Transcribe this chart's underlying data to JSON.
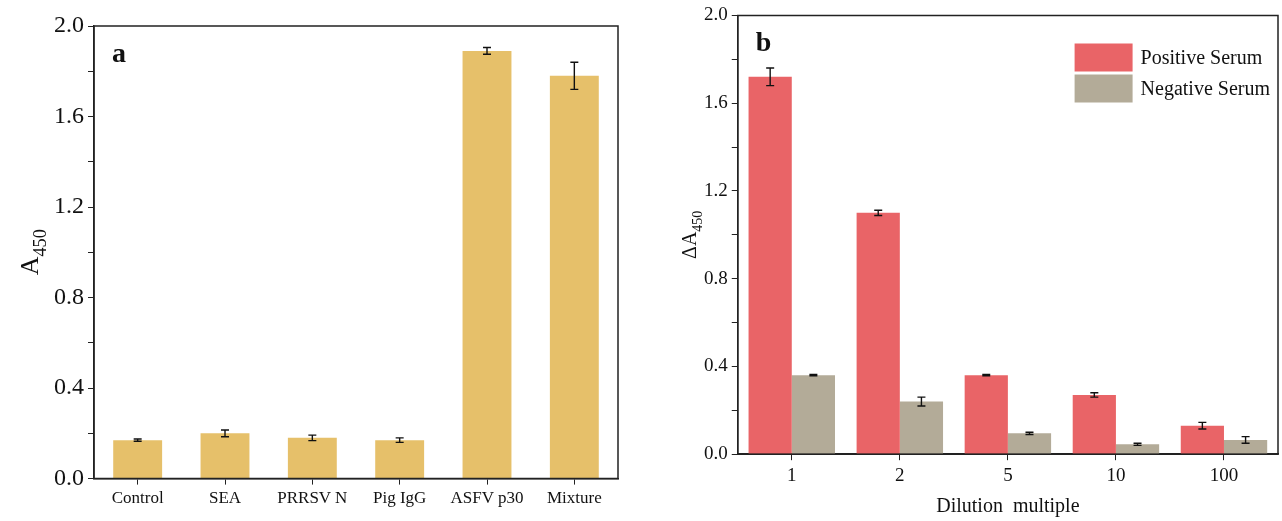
{
  "chart_data": [
    {
      "type": "bar",
      "ylabel": "A$_{450}$",
      "annotations": [
        "a"
      ],
      "categories": [
        "Control",
        "SEA",
        "PRRSV N",
        "Pig IgG",
        "ASFV p30",
        "Mixture"
      ],
      "values": [
        0.17,
        0.2,
        0.18,
        0.17,
        1.89,
        1.78
      ],
      "errors": [
        0.005,
        0.015,
        0.012,
        0.01,
        0.015,
        0.06
      ],
      "color": "#e6c06a",
      "ylim": [
        0,
        2
      ],
      "yticks": [
        {
          "value": 0,
          "label": "0.0"
        },
        {
          "value": 0.2,
          "label": null
        },
        {
          "value": 0.4,
          "label": "0.4"
        },
        {
          "value": 0.6,
          "label": null
        },
        {
          "value": 0.8,
          "label": "0.8"
        },
        {
          "value": 1,
          "label": null
        },
        {
          "value": 1.2,
          "label": "1.2"
        },
        {
          "value": 1.4,
          "label": null
        },
        {
          "value": 1.6,
          "label": "1.6"
        },
        {
          "value": 1.8,
          "label": null
        },
        {
          "value": 2,
          "label": "2.0"
        }
      ],
      "grid": false,
      "legend": false
    },
    {
      "type": "bar",
      "ylabel": "ΔA$_{450}$",
      "xlabel": "Dilution  multiple",
      "annotations": [
        "b"
      ],
      "categories": [
        "1",
        "2",
        "5",
        "10",
        "100"
      ],
      "series": [
        {
          "name": "Positive Serum",
          "color": "#e96467",
          "values": [
            1.72,
            1.1,
            0.36,
            0.27,
            0.13
          ],
          "errors": [
            0.04,
            0.012,
            0.003,
            0.01,
            0.015
          ]
        },
        {
          "name": "Negative Serum",
          "color": "#b3ab98",
          "values": [
            0.36,
            0.24,
            0.095,
            0.045,
            0.065
          ],
          "errors": [
            0.003,
            0.02,
            0.005,
            0.005,
            0.015
          ]
        }
      ],
      "ylim": [
        0,
        2
      ],
      "yticks": [
        {
          "value": 0,
          "label": "0.0"
        },
        {
          "value": 0.2,
          "label": null
        },
        {
          "value": 0.4,
          "label": "0.4"
        },
        {
          "value": 0.6,
          "label": null
        },
        {
          "value": 0.8,
          "label": "0.8"
        },
        {
          "value": 1,
          "label": null
        },
        {
          "value": 1.2,
          "label": "1.2"
        },
        {
          "value": 1.4,
          "label": null
        },
        {
          "value": 1.6,
          "label": "1.6"
        },
        {
          "value": 1.8,
          "label": null
        },
        {
          "value": 2,
          "label": "2.0"
        }
      ],
      "grid": false,
      "legend": "top right"
    }
  ]
}
